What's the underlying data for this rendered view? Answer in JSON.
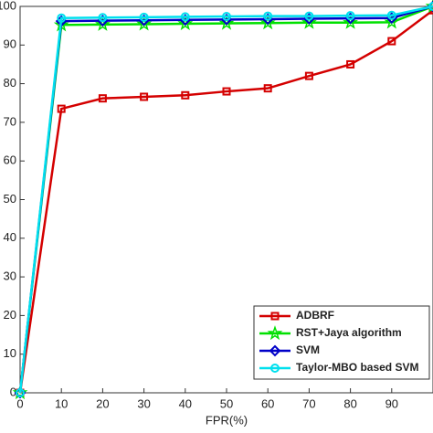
{
  "chart_data": {
    "type": "line",
    "x_label": "FPR(%)",
    "x": [
      0,
      10,
      20,
      30,
      40,
      50,
      60,
      70,
      80,
      90,
      100
    ],
    "series": [
      {
        "name": "ADBRF",
        "color": "#d40000",
        "marker": "square",
        "values": [
          0,
          73.5,
          76.2,
          76.6,
          77,
          78,
          78.8,
          82,
          85,
          91,
          99
        ]
      },
      {
        "name": "RST+Jaya algorithm",
        "color": "#00e000",
        "marker": "star",
        "values": [
          0,
          95.2,
          95.3,
          95.4,
          95.5,
          95.6,
          95.7,
          95.8,
          95.8,
          95.9,
          100
        ]
      },
      {
        "name": "SVM",
        "color": "#0000c8",
        "marker": "diamond",
        "values": [
          0,
          96.2,
          96.3,
          96.4,
          96.5,
          96.6,
          96.7,
          96.8,
          96.9,
          97,
          100
        ]
      },
      {
        "name": "Taylor-MBO based SVM",
        "color": "#00e0ee",
        "marker": "circle",
        "values": [
          0,
          97,
          97.1,
          97.2,
          97.3,
          97.4,
          97.5,
          97.5,
          97.6,
          97.7,
          100
        ]
      }
    ],
    "xlim": [
      0,
      100
    ],
    "xticks": [
      0,
      10,
      20,
      30,
      40,
      50,
      60,
      70,
      80,
      90
    ],
    "ylim": [
      0,
      100
    ],
    "yticks": [
      0,
      10,
      20,
      30,
      40,
      50,
      60,
      70,
      80,
      90,
      100
    ],
    "legend": "lower right"
  }
}
